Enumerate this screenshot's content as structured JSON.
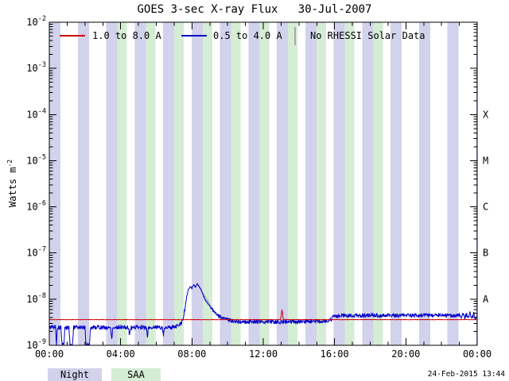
{
  "title": "GOES 3-sec X-ray Flux   30-Jul-2007",
  "legend": {
    "goes_long": "1.0 to 8.0 A",
    "goes_short": "0.5 to 4.0 A",
    "no_rhessi": "No RHESSI Solar Data"
  },
  "bottom_legend": {
    "night": "Night",
    "saa": "SAA"
  },
  "y_axis_label": {
    "base": "Watts m",
    "exp": "-2"
  },
  "footer": {
    "timestamp": "24-Feb-2015 13:44"
  },
  "colors": {
    "goes_long": "#cc0000",
    "goes_short": "#0000cc",
    "no_rhessi": "#a8a8a8",
    "night_band": "#d2d2ec",
    "saa_band": "#d5ecd5",
    "frame": "#000000",
    "text": "#000000"
  },
  "chart_data": {
    "type": "line",
    "title": "GOES 3-sec X-ray Flux 30-Jul-2007",
    "x_axis": {
      "range_hours": [
        0,
        24
      ],
      "major_tick_hours": [
        0,
        4,
        8,
        12,
        16,
        20,
        24
      ],
      "major_tick_labels": [
        "00:00",
        "04:00",
        "08:00",
        "12:00",
        "16:00",
        "20:00",
        "00:00"
      ],
      "minor_tick_step_hours": 1
    },
    "y_axis": {
      "scale": "log",
      "range": [
        1e-09,
        0.01
      ],
      "decade_exponents": [
        -2,
        -3,
        -4,
        -5,
        -6,
        -7,
        -8,
        -9
      ],
      "unit": "Watts m^-2"
    },
    "flare_class_labels": [
      {
        "label": "X",
        "flux": 0.0001
      },
      {
        "label": "M",
        "flux": 1e-05
      },
      {
        "label": "C",
        "flux": 1e-06
      },
      {
        "label": "B",
        "flux": 1e-07
      },
      {
        "label": "A",
        "flux": 1e-08
      }
    ],
    "night_bands_hours": [
      [
        0.0,
        0.63
      ],
      [
        1.6,
        2.23
      ],
      [
        3.19,
        3.82
      ],
      [
        4.79,
        5.42
      ],
      [
        6.38,
        7.01
      ],
      [
        7.98,
        8.61
      ],
      [
        9.57,
        10.2
      ],
      [
        11.17,
        11.8
      ],
      [
        12.76,
        13.39
      ],
      [
        14.36,
        14.99
      ],
      [
        15.95,
        16.58
      ],
      [
        17.55,
        18.18
      ],
      [
        19.14,
        19.77
      ],
      [
        20.74,
        21.37
      ],
      [
        22.33,
        22.96
      ],
      [
        23.93,
        24.0
      ]
    ],
    "saa_bands_hours": [
      [
        3.82,
        4.35
      ],
      [
        5.42,
        5.95
      ],
      [
        7.01,
        7.54
      ],
      [
        8.61,
        9.14
      ],
      [
        10.2,
        10.73
      ],
      [
        11.8,
        12.33
      ],
      [
        13.39,
        13.92
      ],
      [
        14.99,
        15.52
      ],
      [
        16.58,
        17.11
      ],
      [
        18.18,
        18.71
      ]
    ],
    "series": [
      {
        "name": "1.0 to 8.0 A",
        "color_key": "goes_long",
        "line_width": 1,
        "noise_log_amp": 0.004,
        "noise_seed": 11,
        "points": [
          [
            0.0,
            3.6e-09
          ],
          [
            12.95,
            3.6e-09
          ],
          [
            13.0,
            4.2e-09
          ],
          [
            13.05,
            5.9e-09
          ],
          [
            13.12,
            3.7e-09
          ],
          [
            13.2,
            3.6e-09
          ],
          [
            24.0,
            3.6e-09
          ]
        ]
      },
      {
        "name": "0.5 to 4.0 A",
        "color_key": "goes_short",
        "line_width": 1,
        "noise_log_amp": 0.045,
        "noise_seed": 5,
        "points": [
          [
            0.0,
            2.5e-09
          ],
          [
            0.35,
            2.5e-09
          ],
          [
            0.4,
            1e-09
          ],
          [
            0.45,
            2.4e-09
          ],
          [
            0.65,
            2.4e-09
          ],
          [
            0.72,
            1.05e-09
          ],
          [
            0.82,
            1e-09
          ],
          [
            0.87,
            2.4e-09
          ],
          [
            1.1,
            2.4e-09
          ],
          [
            1.16,
            1e-09
          ],
          [
            1.3,
            1e-09
          ],
          [
            1.36,
            2.4e-09
          ],
          [
            1.7,
            2.5e-09
          ],
          [
            2.0,
            2.4e-09
          ],
          [
            2.06,
            1.05e-09
          ],
          [
            2.25,
            1e-09
          ],
          [
            2.31,
            2.4e-09
          ],
          [
            2.7,
            2.5e-09
          ],
          [
            3.1,
            2.4e-09
          ],
          [
            3.44,
            2.4e-09
          ],
          [
            3.5,
            1.4e-09
          ],
          [
            3.56,
            2.4e-09
          ],
          [
            4.0,
            2.5e-09
          ],
          [
            4.44,
            2.4e-09
          ],
          [
            4.5,
            1.6e-09
          ],
          [
            4.56,
            2.4e-09
          ],
          [
            5.0,
            2.5e-09
          ],
          [
            5.44,
            2.4e-09
          ],
          [
            5.5,
            1.5e-09
          ],
          [
            5.56,
            2.4e-09
          ],
          [
            6.0,
            2.5e-09
          ],
          [
            6.34,
            2.4e-09
          ],
          [
            6.4,
            1.7e-09
          ],
          [
            6.46,
            2.4e-09
          ],
          [
            7.0,
            2.5e-09
          ],
          [
            7.3,
            2.7e-09
          ],
          [
            7.5,
            3.5e-09
          ],
          [
            7.6,
            6e-09
          ],
          [
            7.7,
            1.1e-08
          ],
          [
            7.8,
            1.6e-08
          ],
          [
            7.9,
            1.9e-08
          ],
          [
            8.0,
            1.7e-08
          ],
          [
            8.1,
            2.1e-08
          ],
          [
            8.2,
            1.8e-08
          ],
          [
            8.3,
            2.2e-08
          ],
          [
            8.4,
            1.9e-08
          ],
          [
            8.5,
            1.6e-08
          ],
          [
            8.6,
            1.3e-08
          ],
          [
            8.7,
            1.05e-08
          ],
          [
            8.8,
            9e-09
          ],
          [
            9.0,
            7e-09
          ],
          [
            9.2,
            5.5e-09
          ],
          [
            9.4,
            4.6e-09
          ],
          [
            9.6,
            4.1e-09
          ],
          [
            9.8,
            3.8e-09
          ],
          [
            10.0,
            3.5e-09
          ],
          [
            10.5,
            3.3e-09
          ],
          [
            11.0,
            3.2e-09
          ],
          [
            11.5,
            3.3e-09
          ],
          [
            12.0,
            3.2e-09
          ],
          [
            12.5,
            3.3e-09
          ],
          [
            13.0,
            3.2e-09
          ],
          [
            13.5,
            3.3e-09
          ],
          [
            14.0,
            3.2e-09
          ],
          [
            14.5,
            3.3e-09
          ],
          [
            15.0,
            3.3e-09
          ],
          [
            15.5,
            3.4e-09
          ],
          [
            15.8,
            3.6e-09
          ],
          [
            16.0,
            4.3e-09
          ],
          [
            16.5,
            4.4e-09
          ],
          [
            17.0,
            4.5e-09
          ],
          [
            17.5,
            4.4e-09
          ],
          [
            18.0,
            4.5e-09
          ],
          [
            18.5,
            4.4e-09
          ],
          [
            19.0,
            4.5e-09
          ],
          [
            19.5,
            4.4e-09
          ],
          [
            20.0,
            4.5e-09
          ],
          [
            20.5,
            4.4e-09
          ],
          [
            21.0,
            4.5e-09
          ],
          [
            21.5,
            4.4e-09
          ],
          [
            22.0,
            4.5e-09
          ],
          [
            22.5,
            4.4e-09
          ],
          [
            23.0,
            4.5e-09
          ],
          [
            23.1,
            3.9e-09
          ],
          [
            23.2,
            5e-09
          ],
          [
            23.3,
            3.7e-09
          ],
          [
            23.4,
            4.9e-09
          ],
          [
            23.5,
            3.8e-09
          ],
          [
            23.6,
            5e-09
          ],
          [
            23.7,
            3.9e-09
          ],
          [
            23.8,
            4.8e-09
          ],
          [
            23.9,
            3.8e-09
          ],
          [
            24.0,
            4.5e-09
          ]
        ]
      },
      {
        "name": "No RHESSI Solar Data",
        "color_key": "no_rhessi",
        "line_width": 1.4,
        "noise_log_amp": 0.012,
        "noise_seed": 3,
        "segments": [
          [
            [
              8.35,
              2.1e-08
            ],
            [
              8.5,
              1.65e-08
            ],
            [
              8.7,
              1.15e-08
            ],
            [
              8.9,
              9e-09
            ],
            [
              9.1,
              6.5e-09
            ],
            [
              9.3,
              5.2e-09
            ],
            [
              9.5,
              4.4e-09
            ],
            [
              9.7,
              4e-09
            ]
          ],
          [
            [
              10.2,
              3.4e-09
            ],
            [
              10.73,
              3.35e-09
            ]
          ],
          [
            [
              11.8,
              3.3e-09
            ],
            [
              12.33,
              3.3e-09
            ]
          ],
          [
            [
              13.39,
              3.3e-09
            ],
            [
              13.92,
              3.3e-09
            ]
          ],
          [
            [
              14.99,
              3.4e-09
            ],
            [
              15.52,
              3.4e-09
            ]
          ],
          [
            [
              16.58,
              4.4e-09
            ],
            [
              17.11,
              4.45e-09
            ]
          ],
          [
            [
              18.18,
              4.4e-09
            ],
            [
              18.71,
              4.45e-09
            ]
          ],
          [
            [
              19.14,
              4.5e-09
            ],
            [
              19.77,
              4.45e-09
            ]
          ],
          [
            [
              20.74,
              4.5e-09
            ],
            [
              21.37,
              4.45e-09
            ]
          ],
          [
            [
              22.33,
              4.5e-09
            ],
            [
              22.96,
              4.45e-09
            ]
          ]
        ]
      }
    ]
  }
}
